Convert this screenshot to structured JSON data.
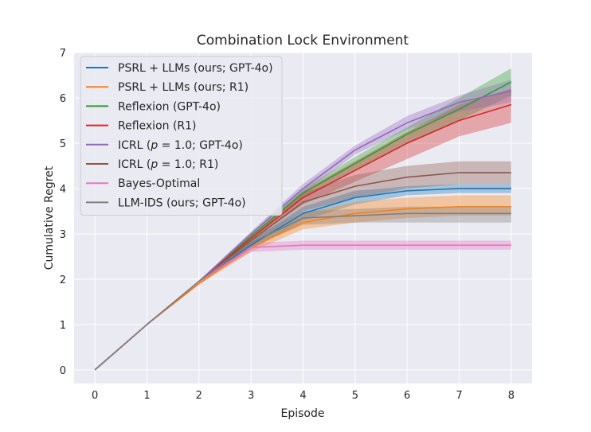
{
  "chart_data": {
    "type": "line",
    "title": "Combination Lock Environment",
    "xlabel": "Episode",
    "ylabel": "Cumulative Regret",
    "x": [
      0,
      1,
      2,
      3,
      4,
      5,
      6,
      7,
      8
    ],
    "xlim": [
      -0.4,
      8.4
    ],
    "ylim": [
      -0.3,
      7.0
    ],
    "xticks": [
      "0",
      "1",
      "2",
      "3",
      "4",
      "5",
      "6",
      "7",
      "8"
    ],
    "yticks": [
      "0",
      "1",
      "2",
      "3",
      "4",
      "5",
      "6",
      "7"
    ],
    "grid": true,
    "legend_position": "top-left",
    "series": [
      {
        "name": "PSRL + LLMs (ours; GPT-4o)",
        "color": "#1f77b4",
        "values": [
          0,
          1.0,
          1.95,
          2.75,
          3.45,
          3.8,
          3.95,
          4.0,
          4.0
        ],
        "lower": [
          0,
          1.0,
          1.93,
          2.65,
          3.3,
          3.65,
          3.85,
          3.9,
          3.9
        ],
        "upper": [
          0,
          1.0,
          1.97,
          2.85,
          3.6,
          3.95,
          4.05,
          4.1,
          4.1
        ]
      },
      {
        "name": "PSRL + LLMs (ours; R1)",
        "color": "#ff7f0e",
        "values": [
          0,
          1.0,
          1.9,
          2.7,
          3.25,
          3.45,
          3.55,
          3.6,
          3.6
        ],
        "lower": [
          0,
          1.0,
          1.88,
          2.6,
          3.1,
          3.25,
          3.35,
          3.4,
          3.4
        ],
        "upper": [
          0,
          1.0,
          1.92,
          2.8,
          3.45,
          3.7,
          3.8,
          3.85,
          3.85
        ]
      },
      {
        "name": "Reflexion (GPT-4o)",
        "color": "#2ca02c",
        "values": [
          0,
          1.0,
          1.95,
          2.95,
          3.9,
          4.55,
          5.2,
          5.75,
          6.35
        ],
        "lower": [
          0,
          1.0,
          1.93,
          2.9,
          3.8,
          4.4,
          5.0,
          5.5,
          6.05
        ],
        "upper": [
          0,
          1.0,
          1.97,
          3.0,
          4.0,
          4.7,
          5.35,
          6.0,
          6.65
        ]
      },
      {
        "name": "Reflexion (R1)",
        "color": "#d62728",
        "values": [
          0,
          1.0,
          1.95,
          2.9,
          3.8,
          4.4,
          5.0,
          5.5,
          5.85
        ],
        "lower": [
          0,
          1.0,
          1.93,
          2.85,
          3.65,
          4.15,
          4.65,
          5.15,
          5.45
        ],
        "upper": [
          0,
          1.0,
          1.97,
          2.95,
          3.95,
          4.6,
          5.25,
          5.85,
          6.2
        ]
      },
      {
        "name": "ICRL ($p = 1.0$; GPT-4o)",
        "color": "#9467bd",
        "values": [
          0,
          1.0,
          1.95,
          3.0,
          4.0,
          4.85,
          5.45,
          5.9,
          6.15
        ],
        "lower": [
          0,
          1.0,
          1.93,
          2.95,
          3.9,
          4.75,
          5.3,
          5.7,
          5.9
        ],
        "upper": [
          0,
          1.0,
          1.97,
          3.05,
          4.1,
          4.95,
          5.6,
          6.05,
          6.4
        ]
      },
      {
        "name": "ICRL ($p = 1.0$; R1)",
        "color": "#8c564b",
        "values": [
          0,
          1.0,
          1.95,
          2.85,
          3.7,
          4.05,
          4.25,
          4.35,
          4.35
        ],
        "lower": [
          0,
          1.0,
          1.93,
          2.75,
          3.5,
          3.8,
          4.0,
          4.1,
          4.1
        ],
        "upper": [
          0,
          1.0,
          1.97,
          2.95,
          3.9,
          4.3,
          4.5,
          4.6,
          4.6
        ]
      },
      {
        "name": "Bayes-Optimal",
        "color": "#e377c2",
        "values": [
          0,
          1.0,
          1.95,
          2.7,
          2.75,
          2.75,
          2.75,
          2.75,
          2.75
        ],
        "lower": [
          0,
          1.0,
          1.93,
          2.6,
          2.65,
          2.65,
          2.65,
          2.65,
          2.65
        ],
        "upper": [
          0,
          1.0,
          1.97,
          2.8,
          2.85,
          2.85,
          2.85,
          2.85,
          2.85
        ]
      },
      {
        "name": "LLM-IDS (ours; GPT-4o)",
        "color": "#7f7f7f",
        "values": [
          0,
          1.0,
          1.95,
          2.8,
          3.35,
          3.4,
          3.45,
          3.45,
          3.45
        ],
        "lower": [
          0,
          1.0,
          1.93,
          2.7,
          3.2,
          3.25,
          3.25,
          3.25,
          3.25
        ],
        "upper": [
          0,
          1.0,
          1.97,
          2.9,
          3.5,
          3.55,
          3.6,
          3.6,
          3.6
        ]
      }
    ]
  }
}
